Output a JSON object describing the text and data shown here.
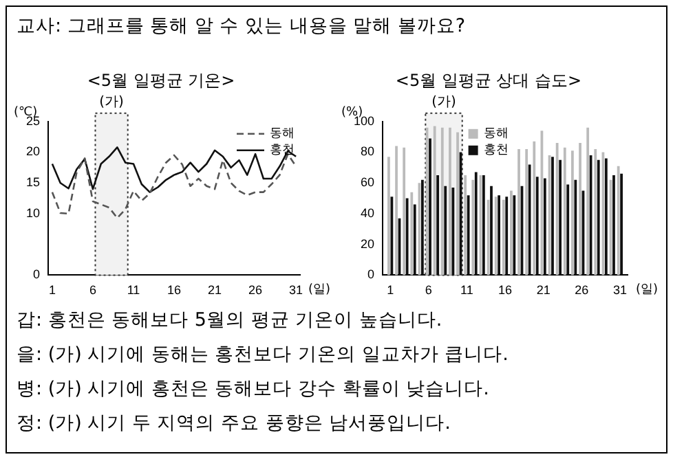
{
  "chart_data": [
    {
      "type": "other",
      "annotations": [
        "교사: 그래프를 통해 알 수 있는 내용을 말해 볼까요?"
      ]
    },
    {
      "type": "line",
      "title": "<5월 일평균 기온>",
      "ylabel": "(℃)",
      "xlabel": "(일)",
      "x": [
        1,
        2,
        3,
        4,
        5,
        6,
        7,
        8,
        9,
        10,
        11,
        12,
        13,
        14,
        15,
        16,
        17,
        18,
        19,
        20,
        21,
        22,
        23,
        24,
        25,
        26,
        27,
        28,
        29,
        30,
        31
      ],
      "xlim": [
        0.5,
        31.5
      ],
      "xticks": [
        1,
        6,
        11,
        16,
        21,
        26,
        31
      ],
      "ylim": [
        0,
        25
      ],
      "yticks": [
        0,
        10,
        15,
        20,
        25
      ],
      "grid": false,
      "marker": "none",
      "legend": "top right",
      "bands": [
        {
          "axis": "x",
          "from": 6.3,
          "to": 10.3,
          "label": "(가)",
          "color": "#f2f2f2"
        }
      ],
      "series": [
        {
          "name": "동해",
          "color": "#555555",
          "line_style": "dashed",
          "values": [
            13.5,
            10.1,
            10,
            16.7,
            19,
            12,
            11.5,
            11,
            9.3,
            10.7,
            13.7,
            12.1,
            13.3,
            16,
            18.3,
            19.5,
            18,
            14.5,
            15.7,
            14.5,
            14,
            18.7,
            15,
            13.7,
            13,
            13.5,
            13.5,
            14.8,
            16.3,
            19.7,
            17.7
          ]
        },
        {
          "name": "홍천",
          "color": "#111111",
          "line_style": "solid",
          "values": [
            18.1,
            15,
            14.1,
            17.2,
            18.9,
            14,
            18.1,
            19.3,
            20.8,
            18.3,
            18.1,
            14.8,
            13.5,
            14.3,
            15.5,
            16.3,
            16.8,
            18.3,
            16.8,
            18.1,
            20.3,
            19.3,
            17.5,
            18.7,
            16.3,
            19.7,
            15.7,
            15.7,
            17.7,
            20.2,
            19.3
          ]
        }
      ]
    },
    {
      "type": "bar",
      "title": "<5월 일평균 상대 습도>",
      "ylabel": "(%)",
      "xlabel": "(일)",
      "x": [
        1,
        2,
        3,
        4,
        5,
        6,
        7,
        8,
        9,
        10,
        11,
        12,
        13,
        14,
        15,
        16,
        17,
        18,
        19,
        20,
        21,
        22,
        23,
        24,
        25,
        26,
        27,
        28,
        29,
        30,
        31
      ],
      "xlim": [
        0,
        32
      ],
      "xticks": [
        1,
        6,
        11,
        16,
        21,
        26,
        31
      ],
      "ylim": [
        0,
        100
      ],
      "yticks": [
        0,
        20,
        40,
        60,
        80,
        100
      ],
      "grid": false,
      "legend": "top",
      "bands": [
        {
          "axis": "x",
          "from": 5.6,
          "to": 10.4,
          "label": "(가)",
          "color": "#f2f2f2"
        }
      ],
      "series": [
        {
          "name": "동해",
          "color": "#bbbbbb",
          "values": [
            77,
            84,
            83,
            54,
            60,
            96,
            97,
            96,
            96,
            93,
            65,
            62,
            65,
            49,
            51,
            49,
            55,
            82,
            82,
            87,
            94,
            78,
            86,
            83,
            81,
            86,
            96,
            82,
            80,
            62,
            71
          ]
        },
        {
          "name": "홍천",
          "color": "#111111",
          "values": [
            51,
            37,
            50,
            46,
            62,
            89,
            65,
            58,
            57,
            80,
            52,
            67,
            65,
            58,
            52,
            51,
            52,
            58,
            72,
            64,
            63,
            77,
            75,
            59,
            62,
            55,
            78,
            75,
            76,
            65,
            66
          ]
        }
      ]
    },
    {
      "type": "other",
      "annotations": [
        "갑: 홍천은 동해보다 5월의 평균 기온이 높습니다.",
        "을: (가) 시기에 동해는 홍천보다 기온의 일교차가 큽니다.",
        "병: (가) 시기에 홍천은 동해보다 강수 확률이 낮습니다.",
        "정: (가) 시기 두 지역의 주요 풍향은 남서풍입니다."
      ]
    }
  ]
}
